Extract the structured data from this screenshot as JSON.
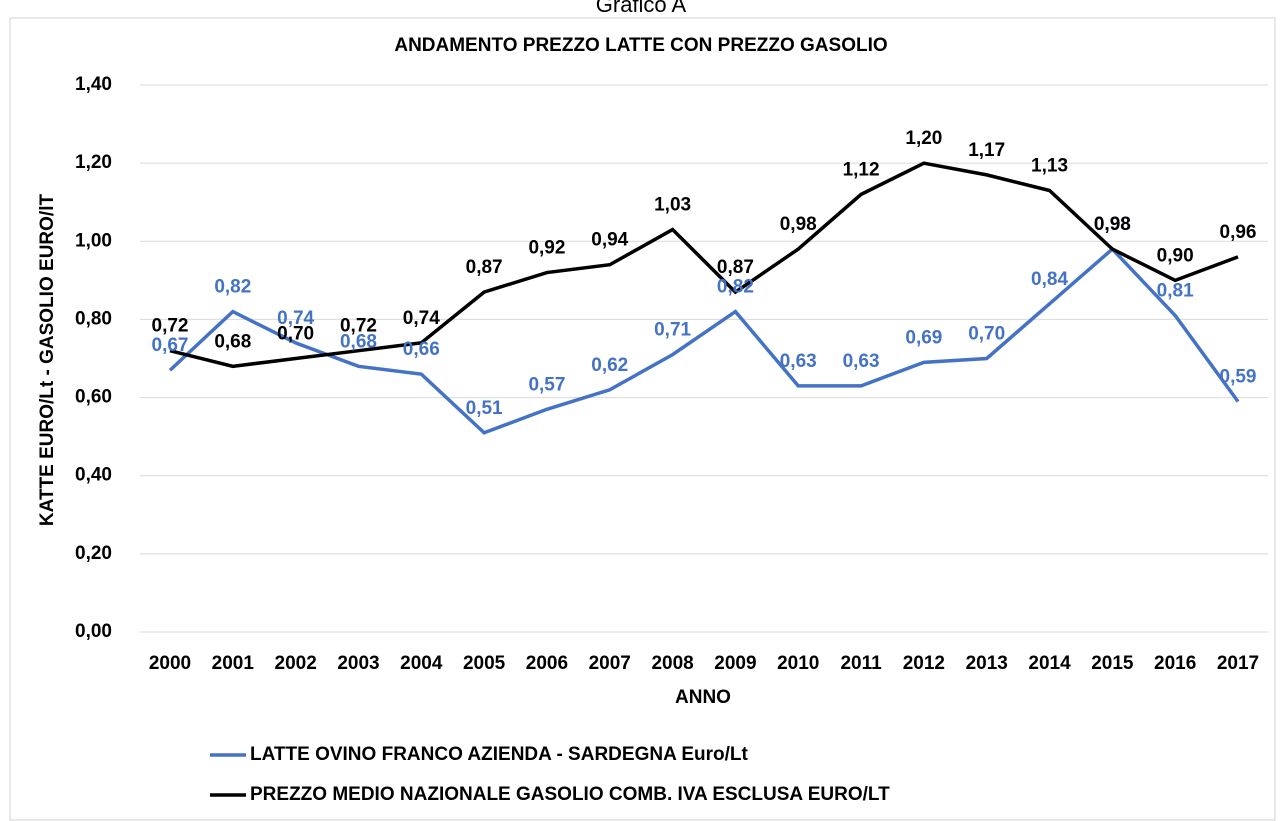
{
  "caption": "Grafico A",
  "chart_data": {
    "type": "line",
    "title": "ANDAMENTO  PREZZO  LATTE  CON  PREZZO  GASOLIO",
    "x_label": "ANNO",
    "y_label": "KATTE EURO/Lt - GASOLIO EURO/lT",
    "categories": [
      "2000",
      "2001",
      "2002",
      "2003",
      "2004",
      "2005",
      "2006",
      "2007",
      "2008",
      "2009",
      "2010",
      "2011",
      "2012",
      "2013",
      "2014",
      "2015",
      "2016",
      "2017"
    ],
    "series": [
      {
        "name": "LATTE OVINO FRANCO AZIENDA - SARDEGNA Euro/Lt",
        "color": "#4472c4",
        "values": [
          0.67,
          0.82,
          0.74,
          0.68,
          0.66,
          0.51,
          0.57,
          0.62,
          0.71,
          0.82,
          0.63,
          0.63,
          0.69,
          0.7,
          0.84,
          0.98,
          0.81,
          0.59
        ],
        "value_labels": [
          "0,67",
          "0,82",
          "0,74",
          "0,68",
          "0,66",
          "0,51",
          "0,57",
          "0,62",
          "0,71",
          "0,82",
          "0,63",
          "0,63",
          "0,69",
          "0,70",
          "0,84",
          "0,98",
          "0,81",
          "0,59"
        ]
      },
      {
        "name": "PREZZO MEDIO NAZIONALE GASOLIO COMB. IVA ESCLUSA EURO/LT",
        "color": "#000000",
        "values": [
          0.72,
          0.68,
          0.7,
          0.72,
          0.74,
          0.87,
          0.92,
          0.94,
          1.03,
          0.87,
          0.98,
          1.12,
          1.2,
          1.17,
          1.13,
          0.98,
          0.9,
          0.96
        ],
        "value_labels": [
          "0,72",
          "0,68",
          "0,70",
          "0,72",
          "0,74",
          "0,87",
          "0,92",
          "0,94",
          "1,03",
          "0,87",
          "0,98",
          "1,12",
          "1,20",
          "1,17",
          "1,13",
          "0,98",
          "0,90",
          "0,96"
        ]
      }
    ],
    "ylim": [
      0,
      1.4
    ],
    "yticks": [
      {
        "value": 0,
        "label": "0,00"
      },
      {
        "value": 0.2,
        "label": "0,20"
      },
      {
        "value": 0.4,
        "label": "0,40"
      },
      {
        "value": 0.6,
        "label": "0,60"
      },
      {
        "value": 0.8,
        "label": "0,80"
      },
      {
        "value": 1.0,
        "label": "1,00"
      },
      {
        "value": 1.2,
        "label": "1,20"
      },
      {
        "value": 1.4,
        "label": "1,40"
      }
    ],
    "grid": true,
    "legend": "bottom"
  }
}
